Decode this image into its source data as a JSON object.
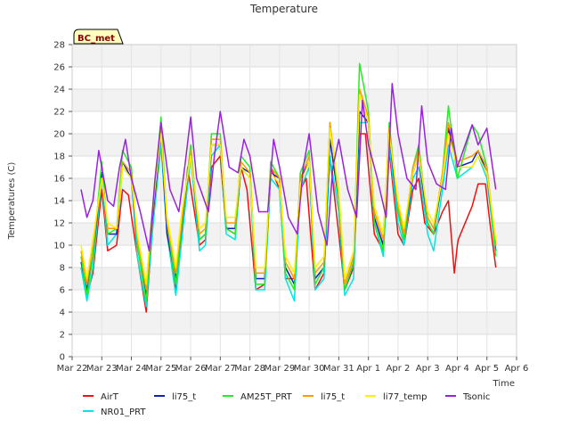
{
  "chart_data": {
    "type": "line",
    "title": "Temperature",
    "ylabel": "Temperatures (C)",
    "xlabel": "Time",
    "badge": "BC_met",
    "ylim": [
      0,
      28
    ],
    "yticks": [
      0,
      2,
      4,
      6,
      8,
      10,
      12,
      14,
      16,
      18,
      20,
      22,
      24,
      26,
      28
    ],
    "xlim": [
      0,
      15
    ],
    "xtick_labels": [
      "Mar 22",
      "Mar 23",
      "Mar 24",
      "Mar 25",
      "Mar 26",
      "Mar 27",
      "Mar 28",
      "Mar 29",
      "Mar 30",
      "Mar 31",
      "Apr 1",
      "Apr 2",
      "Apr 3",
      "Apr 4",
      "Apr 5",
      "Apr 6"
    ],
    "grid": true,
    "legend_position": "bottom",
    "series": [
      {
        "name": "AirT",
        "color": "#ee1111",
        "x": [
          0.3,
          0.5,
          0.7,
          1.0,
          1.2,
          1.5,
          1.7,
          1.9,
          2.2,
          2.5,
          2.7,
          3.0,
          3.2,
          3.5,
          3.7,
          3.9,
          4.3,
          4.5,
          4.7,
          5.0,
          5.2,
          5.5,
          5.7,
          5.9,
          6.2,
          6.5,
          6.7,
          7.0,
          7.2,
          7.5,
          7.7,
          7.9,
          8.2,
          8.5,
          8.7,
          9.0,
          9.2,
          9.5,
          9.7,
          9.9,
          10.2,
          10.5,
          10.7,
          11.0,
          11.2,
          11.5,
          11.7,
          11.9,
          12.2,
          12.5,
          12.7,
          12.9,
          13.0,
          13.03,
          13.5,
          13.7,
          13.95,
          14.1,
          14.3
        ],
        "y": [
          8.0,
          5.5,
          7.5,
          15.0,
          9.5,
          10.0,
          15.0,
          14.5,
          9.0,
          4.0,
          11.0,
          20.0,
          12.0,
          6.0,
          11.0,
          17.0,
          10.0,
          10.5,
          17.0,
          18.0,
          11.5,
          11.0,
          17.0,
          15.0,
          6.0,
          6.5,
          17.0,
          15.0,
          7.0,
          7.0,
          15.0,
          16.0,
          6.0,
          7.5,
          18.0,
          11.0,
          6.0,
          8.0,
          20.0,
          20.0,
          11.0,
          9.5,
          18.5,
          11.0,
          10.0,
          15.0,
          16.0,
          12.0,
          11.0,
          13.0,
          14.0,
          7.5,
          10.0,
          10.5,
          13.5,
          15.5,
          15.5,
          12.0,
          8.0
        ]
      },
      {
        "name": "NR01_PRT",
        "color": "#00e5e5",
        "x": [
          0.3,
          0.5,
          0.7,
          1.0,
          1.2,
          1.5,
          1.7,
          2.0,
          2.2,
          2.5,
          2.7,
          3.0,
          3.2,
          3.5,
          3.7,
          4.0,
          4.3,
          4.5,
          4.7,
          5.0,
          5.2,
          5.5,
          5.7,
          6.0,
          6.2,
          6.5,
          6.7,
          7.0,
          7.2,
          7.5,
          7.7,
          8.0,
          8.2,
          8.5,
          8.7,
          9.0,
          9.2,
          9.5,
          9.7,
          10.0,
          10.2,
          10.5,
          10.7,
          11.0,
          11.2,
          11.5,
          11.7,
          12.0,
          12.2,
          12.5,
          12.7,
          13.0,
          13.5,
          13.7,
          14.0,
          14.3
        ],
        "y": [
          8.0,
          5.0,
          8.0,
          16.0,
          10.0,
          11.0,
          17.0,
          16.0,
          9.0,
          4.5,
          11.0,
          19.0,
          11.0,
          5.5,
          10.5,
          18.0,
          9.5,
          10.0,
          18.0,
          19.0,
          11.0,
          10.5,
          17.0,
          16.0,
          6.0,
          6.0,
          16.0,
          15.0,
          7.0,
          5.0,
          15.0,
          17.0,
          6.0,
          7.0,
          18.0,
          13.0,
          5.5,
          7.0,
          21.0,
          21.0,
          12.0,
          9.0,
          19.0,
          12.0,
          10.0,
          16.0,
          17.0,
          11.0,
          9.5,
          15.0,
          19.0,
          16.0,
          17.0,
          18.0,
          16.0,
          9.0
        ]
      },
      {
        "name": "li75_t",
        "color": "#1122bb",
        "x": [
          0.3,
          0.5,
          0.7,
          1.0,
          1.2,
          1.5,
          1.7,
          2.0,
          2.2,
          2.5,
          2.7,
          3.0,
          3.2,
          3.5,
          3.7,
          4.0,
          4.3,
          4.5,
          4.7,
          5.0,
          5.2,
          5.5,
          5.7,
          6.0,
          6.2,
          6.5,
          6.7,
          7.0,
          7.2,
          7.5,
          7.7,
          8.0,
          8.2,
          8.5,
          8.7,
          9.0,
          9.2,
          9.5,
          9.7,
          10.0,
          10.2,
          10.5,
          10.7,
          11.0,
          11.2,
          11.5,
          11.7,
          12.0,
          12.2,
          12.5,
          12.7,
          13.0,
          13.5,
          13.7,
          14.0,
          14.3
        ],
        "y": [
          8.5,
          6.0,
          9.0,
          16.5,
          11.0,
          11.0,
          17.5,
          16.0,
          10.0,
          5.5,
          12.0,
          20.0,
          11.0,
          7.0,
          12.0,
          18.5,
          10.5,
          11.0,
          19.0,
          19.0,
          11.5,
          11.5,
          17.0,
          16.5,
          7.0,
          7.0,
          16.5,
          16.0,
          8.0,
          6.5,
          16.0,
          17.5,
          7.0,
          8.0,
          19.5,
          14.0,
          6.0,
          8.5,
          22.0,
          21.0,
          12.5,
          10.0,
          20.0,
          13.0,
          10.5,
          16.5,
          18.0,
          12.0,
          11.0,
          16.0,
          20.5,
          17.0,
          17.5,
          18.5,
          16.5,
          9.5
        ]
      },
      {
        "name": "AM25T_PRT",
        "color": "#22ee22",
        "x": [
          0.3,
          0.5,
          0.7,
          1.0,
          1.2,
          1.5,
          1.7,
          2.0,
          2.2,
          2.5,
          2.7,
          3.0,
          3.2,
          3.5,
          3.7,
          4.0,
          4.3,
          4.5,
          4.7,
          5.0,
          5.2,
          5.5,
          5.7,
          6.0,
          6.2,
          6.5,
          6.7,
          7.0,
          7.2,
          7.5,
          7.7,
          8.0,
          8.2,
          8.5,
          8.7,
          9.0,
          9.2,
          9.5,
          9.7,
          10.0,
          10.2,
          10.5,
          10.7,
          11.0,
          11.2,
          11.5,
          11.7,
          12.0,
          12.2,
          12.5,
          12.7,
          13.0,
          13.5,
          13.7,
          14.0,
          14.3
        ],
        "y": [
          9.0,
          5.5,
          9.0,
          17.5,
          11.0,
          11.5,
          18.5,
          17.0,
          10.0,
          5.0,
          12.5,
          21.5,
          12.0,
          6.5,
          12.0,
          19.0,
          10.5,
          11.0,
          20.0,
          20.0,
          11.5,
          11.0,
          18.0,
          17.0,
          6.5,
          6.5,
          17.5,
          16.0,
          7.5,
          6.0,
          16.5,
          18.5,
          6.5,
          8.0,
          21.0,
          14.0,
          6.0,
          8.5,
          26.3,
          22.0,
          12.0,
          9.5,
          21.0,
          13.0,
          10.5,
          17.0,
          19.0,
          12.0,
          11.0,
          16.5,
          22.5,
          16.0,
          20.8,
          20.0,
          17.0,
          9.0
        ]
      },
      {
        "name": "li75_t",
        "color": "#ff9900",
        "x": [
          0.3,
          0.5,
          0.7,
          1.0,
          1.2,
          1.5,
          1.7,
          2.0,
          2.2,
          2.5,
          2.7,
          3.0,
          3.2,
          3.5,
          3.7,
          4.0,
          4.3,
          4.5,
          4.7,
          5.0,
          5.2,
          5.5,
          5.7,
          6.0,
          6.2,
          6.5,
          6.7,
          7.0,
          7.2,
          7.5,
          7.7,
          8.0,
          8.2,
          8.5,
          8.7,
          9.0,
          9.2,
          9.5,
          9.7,
          10.0,
          10.2,
          10.5,
          10.7,
          11.0,
          11.2,
          11.5,
          11.7,
          12.0,
          12.2,
          12.5,
          12.7,
          13.0,
          13.5,
          13.7,
          14.0,
          14.3
        ],
        "y": [
          9.5,
          6.5,
          10.0,
          16.0,
          11.5,
          11.5,
          17.5,
          16.5,
          10.5,
          6.0,
          12.5,
          20.5,
          12.0,
          7.5,
          12.5,
          18.5,
          11.0,
          11.5,
          19.5,
          19.5,
          12.0,
          12.0,
          17.5,
          16.5,
          7.5,
          7.5,
          17.0,
          16.0,
          8.5,
          7.0,
          16.0,
          18.0,
          7.5,
          8.5,
          21.0,
          14.5,
          6.5,
          9.0,
          24.0,
          21.5,
          13.0,
          10.5,
          20.5,
          13.5,
          11.0,
          17.0,
          18.5,
          12.5,
          11.5,
          16.5,
          21.0,
          17.5,
          18.0,
          18.5,
          17.0,
          10.0
        ]
      },
      {
        "name": "li77_temp",
        "color": "#ffee00",
        "x": [
          0.3,
          0.5,
          0.7,
          1.0,
          1.2,
          1.5,
          1.7,
          2.0,
          2.2,
          2.5,
          2.7,
          3.0,
          3.2,
          3.5,
          3.7,
          4.0,
          4.3,
          4.5,
          4.7,
          5.0,
          5.2,
          5.5,
          5.7,
          6.0,
          6.2,
          6.5,
          6.7,
          7.0,
          7.2,
          7.5,
          7.7,
          8.0,
          8.2,
          8.5,
          8.7,
          9.0,
          9.2,
          9.5,
          9.7,
          10.0,
          10.2,
          10.5,
          10.7,
          11.0,
          11.2,
          11.5,
          11.7,
          12.0,
          12.2,
          12.5,
          12.7,
          13.0,
          13.5,
          13.7,
          14.0,
          14.3
        ],
        "y": [
          10.0,
          7.0,
          10.5,
          16.0,
          12.0,
          11.5,
          17.0,
          16.0,
          11.0,
          6.5,
          13.0,
          20.0,
          12.5,
          8.0,
          13.0,
          18.0,
          11.5,
          12.0,
          19.0,
          19.0,
          12.5,
          12.5,
          17.0,
          16.0,
          8.0,
          8.0,
          16.5,
          15.5,
          9.0,
          7.5,
          15.5,
          17.5,
          8.0,
          9.0,
          20.5,
          15.0,
          7.0,
          9.5,
          23.5,
          21.0,
          13.5,
          11.0,
          20.0,
          14.0,
          11.5,
          16.5,
          18.0,
          13.0,
          12.0,
          16.0,
          20.0,
          17.0,
          17.0,
          18.0,
          16.5,
          10.5
        ]
      },
      {
        "name": "Tsonic",
        "color": "#9922dd",
        "x": [
          0.3,
          0.5,
          0.7,
          0.9,
          1.0,
          1.2,
          1.4,
          1.6,
          1.8,
          2.0,
          2.3,
          2.6,
          2.8,
          3.0,
          3.3,
          3.6,
          3.8,
          4.0,
          4.2,
          4.6,
          4.8,
          5.0,
          5.3,
          5.6,
          5.8,
          6.0,
          6.3,
          6.6,
          6.8,
          7.0,
          7.3,
          7.6,
          7.8,
          8.0,
          8.3,
          8.6,
          8.8,
          9.0,
          9.3,
          9.6,
          9.8,
          10.0,
          10.3,
          10.6,
          10.8,
          11.0,
          11.3,
          11.6,
          11.8,
          12.0,
          12.3,
          12.6,
          12.8,
          13.0,
          13.5,
          13.7,
          14.0,
          14.3
        ],
        "y": [
          15.0,
          12.5,
          14.0,
          18.5,
          17.0,
          14.0,
          13.5,
          17.0,
          19.5,
          16.0,
          13.0,
          9.5,
          16.0,
          21.0,
          15.0,
          13.0,
          17.0,
          21.5,
          16.0,
          13.0,
          18.0,
          22.0,
          17.0,
          16.5,
          19.5,
          18.0,
          13.0,
          13.0,
          19.5,
          17.0,
          12.5,
          11.0,
          17.0,
          20.0,
          13.0,
          10.0,
          17.0,
          19.5,
          15.0,
          12.5,
          23.0,
          19.0,
          16.0,
          12.5,
          24.5,
          20.0,
          16.0,
          15.0,
          22.5,
          17.5,
          15.5,
          15.0,
          20.5,
          17.0,
          20.8,
          19.0,
          20.5,
          15.0
        ]
      }
    ]
  }
}
